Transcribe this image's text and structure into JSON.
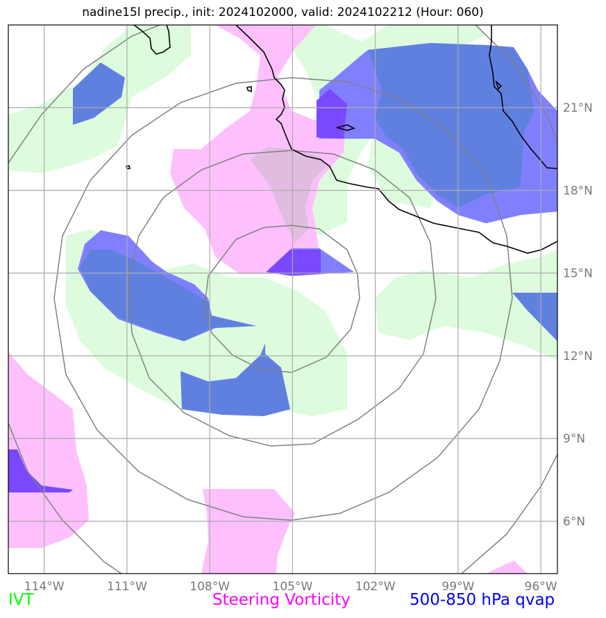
{
  "title": "nadine15l precip., init: 2024102000, valid: 2024102212 (Hour: 060)",
  "legend": [
    {
      "label": "IVT",
      "color": "#00ff00"
    },
    {
      "label": "Steering Vorticity",
      "color": "#ff00ff"
    },
    {
      "label": "500-850 hPa qvap",
      "color": "#0000ff"
    }
  ],
  "map": {
    "projection": "lat-lon",
    "lon_range": [
      -115.3,
      -95.4
    ],
    "lat_range": [
      4.1,
      24.0
    ],
    "lon_ticks": [
      {
        "value": -114,
        "label": "114°W"
      },
      {
        "value": -111,
        "label": "111°W"
      },
      {
        "value": -108,
        "label": "108°W"
      },
      {
        "value": -105,
        "label": "105°W"
      },
      {
        "value": -102,
        "label": "102°W"
      },
      {
        "value": -99,
        "label": "99°W"
      },
      {
        "value": -96,
        "label": "96°W"
      }
    ],
    "lat_ticks": [
      {
        "value": 6,
        "label": "6°N"
      },
      {
        "value": 9,
        "label": "9°N"
      },
      {
        "value": 12,
        "label": "12°N"
      },
      {
        "value": 15,
        "label": "15°N"
      },
      {
        "value": 18,
        "label": "18°N"
      },
      {
        "value": 21,
        "label": "21°N"
      }
    ],
    "gridlines": true,
    "range_rings_center": {
      "lon": -105.0,
      "lat": 13.6
    },
    "colors": {
      "ivt": "#ddfcdd",
      "vorticity": "#fdc0fd",
      "vort_ivt_overlap": "#e0bde0",
      "qvap_low": "#8080ff",
      "qvap_mid": "#6080e0",
      "qvap_high": "#7a48ff",
      "coast": "#000000",
      "grid": "#aaaaaa",
      "ring": "#808080"
    }
  }
}
